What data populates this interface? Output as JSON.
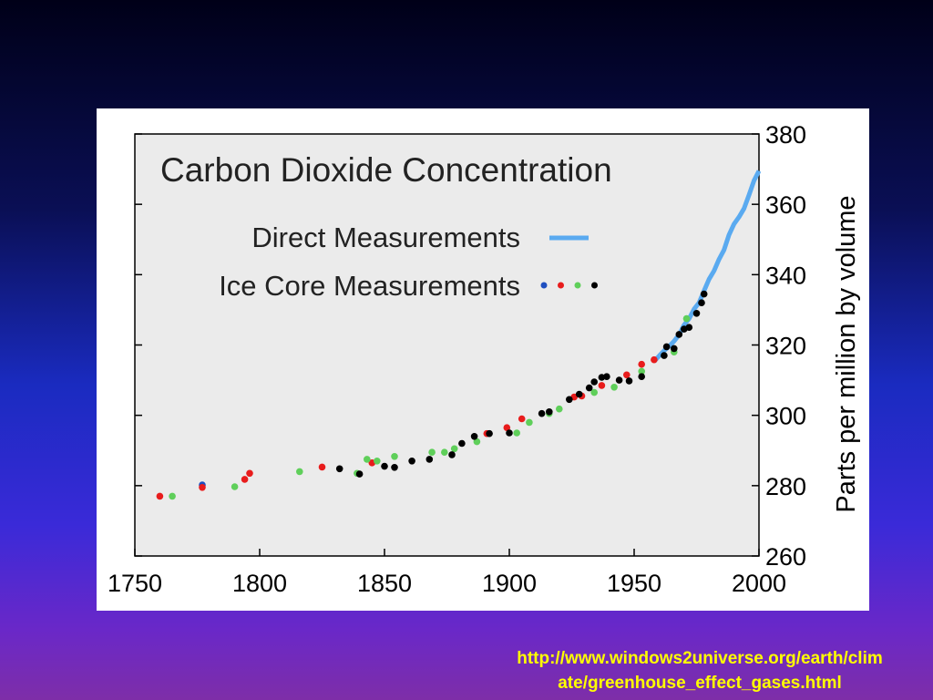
{
  "source": {
    "line1": "http://www.windows2universe.org/earth/clim",
    "line2": "ate/greenhouse_effect_gases.html"
  },
  "chart_data": {
    "type": "scatter",
    "title": "Carbon Dioxide Concentration",
    "xlabel": "",
    "ylabel": "Parts per million by volume",
    "xlim": [
      1750,
      2000
    ],
    "ylim": [
      260,
      380
    ],
    "x_ticks": [
      "1750",
      "1800",
      "1850",
      "1900",
      "1950",
      "2000"
    ],
    "y_ticks": [
      "260",
      "280",
      "300",
      "320",
      "340",
      "360",
      "380"
    ],
    "grid": false,
    "legend_position": "top-left",
    "background_color": "#ebebeb",
    "series": [
      {
        "name": "Direct Measurements",
        "kind": "line",
        "color": "#5aaaf0",
        "x": [
          1958,
          1960,
          1962,
          1964,
          1966,
          1968,
          1970,
          1972,
          1974,
          1976,
          1978,
          1980,
          1982,
          1984,
          1986,
          1988,
          1990,
          1992,
          1994,
          1996,
          1998,
          2000
        ],
        "y": [
          315.3,
          316.9,
          318.4,
          319.6,
          321.1,
          322.9,
          325.7,
          327.5,
          330.2,
          332.0,
          335.4,
          338.7,
          341.1,
          344.4,
          347.0,
          351.3,
          354.4,
          356.4,
          358.8,
          362.6,
          366.7,
          369.5
        ]
      },
      {
        "name": "Ice Core Measurements",
        "kind": "markers",
        "groups": [
          {
            "color": "#1f4fc0",
            "x": [
              1777
            ],
            "y": [
              280.2
            ]
          },
          {
            "color": "#e81c1c",
            "x": [
              1760,
              1777,
              1794,
              1796,
              1825,
              1845,
              1891,
              1899,
              1905,
              1926,
              1929,
              1937,
              1947,
              1953,
              1958
            ],
            "y": [
              277.0,
              279.5,
              281.8,
              283.5,
              285.3,
              286.5,
              294.8,
              296.5,
              299.0,
              305.2,
              305.5,
              308.5,
              311.5,
              314.5,
              315.8
            ]
          },
          {
            "color": "#5fcf5a",
            "x": [
              1765,
              1790,
              1816,
              1839,
              1843,
              1847,
              1854,
              1869,
              1874,
              1878,
              1887,
              1903,
              1908,
              1916,
              1920,
              1934,
              1942,
              1953,
              1966,
              1971
            ],
            "y": [
              277.0,
              279.7,
              284.0,
              283.5,
              287.5,
              287.0,
              288.3,
              289.5,
              289.5,
              290.5,
              292.5,
              295.0,
              298.0,
              300.5,
              301.8,
              306.5,
              308.0,
              312.5,
              318.0,
              327.5
            ]
          },
          {
            "color": "#000000",
            "x": [
              1832,
              1840,
              1850,
              1854,
              1861,
              1868,
              1877,
              1881,
              1886,
              1892,
              1900,
              1913,
              1916,
              1924,
              1928,
              1932,
              1934,
              1937,
              1939,
              1944,
              1948,
              1953,
              1962,
              1963,
              1966,
              1968,
              1970,
              1972,
              1975,
              1977,
              1978
            ],
            "y": [
              284.8,
              283.3,
              285.5,
              285.2,
              287.0,
              287.5,
              288.8,
              292.0,
              294.0,
              294.8,
              295.0,
              300.5,
              301.0,
              304.5,
              306.0,
              307.8,
              309.5,
              310.8,
              311.0,
              310.0,
              309.8,
              311.0,
              317.0,
              319.5,
              319.0,
              323.0,
              324.5,
              325.0,
              329.0,
              332.0,
              334.5
            ]
          }
        ]
      }
    ]
  }
}
